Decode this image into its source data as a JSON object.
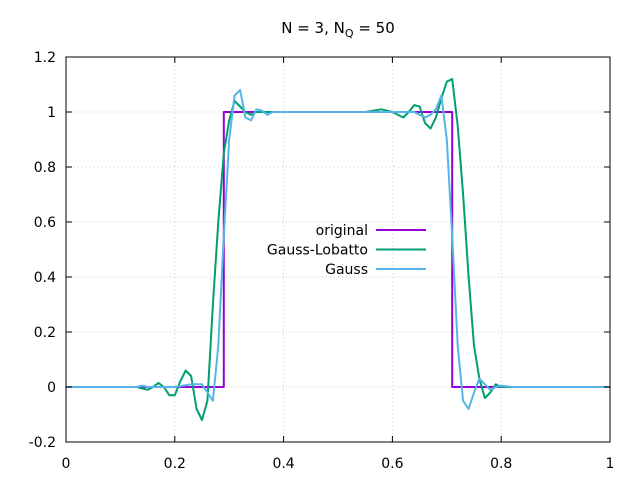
{
  "chart_data": {
    "type": "line",
    "title": "N = 3, N",
    "title_sub": "Q",
    "title_tail": " = 50",
    "xlim": [
      0,
      1
    ],
    "ylim": [
      -0.2,
      1.2
    ],
    "xticks": [
      0,
      0.2,
      0.4,
      0.6,
      0.8,
      1
    ],
    "xtick_labels": [
      "0",
      "0.2",
      "0.4",
      "0.6",
      "0.8",
      "1"
    ],
    "yticks": [
      -0.2,
      0,
      0.2,
      0.4,
      0.6,
      0.8,
      1,
      1.2
    ],
    "ytick_labels": [
      "-0.2",
      "0",
      "0.2",
      "0.4",
      "0.6",
      "0.8",
      "1",
      "1.2"
    ],
    "grid": true,
    "legend_position": "center",
    "series": [
      {
        "name": "original",
        "color": "#9400d3",
        "x": [
          0,
          0.29,
          0.29,
          0.71,
          0.71,
          1
        ],
        "y": [
          0,
          0,
          1,
          1,
          0,
          0
        ]
      },
      {
        "name": "Gauss-Lobatto",
        "color": "#009e73",
        "x": [
          0,
          0.1,
          0.13,
          0.15,
          0.16,
          0.17,
          0.18,
          0.19,
          0.2,
          0.21,
          0.22,
          0.23,
          0.24,
          0.25,
          0.26,
          0.27,
          0.28,
          0.29,
          0.3,
          0.31,
          0.32,
          0.33,
          0.34,
          0.35,
          0.37,
          0.4,
          0.5,
          0.55,
          0.58,
          0.6,
          0.62,
          0.63,
          0.64,
          0.65,
          0.66,
          0.67,
          0.68,
          0.69,
          0.7,
          0.71,
          0.72,
          0.73,
          0.74,
          0.75,
          0.76,
          0.77,
          0.78,
          0.79,
          0.8,
          0.82,
          1
        ],
        "y": [
          0,
          0,
          0,
          -0.01,
          0,
          0.015,
          0,
          -0.03,
          -0.03,
          0.02,
          0.06,
          0.04,
          -0.08,
          -0.12,
          -0.05,
          0.3,
          0.6,
          0.85,
          0.97,
          1.04,
          1.02,
          1.0,
          0.99,
          1.0,
          1.0,
          1.0,
          1.0,
          1.0,
          1.01,
          1.0,
          0.98,
          1.0,
          1.025,
          1.02,
          0.96,
          0.94,
          0.98,
          1.05,
          1.11,
          1.12,
          0.95,
          0.7,
          0.4,
          0.15,
          0.03,
          -0.04,
          -0.02,
          0.01,
          0,
          0,
          0
        ]
      },
      {
        "name": "Gauss",
        "color": "#56b4e9",
        "x": [
          0,
          0.13,
          0.14,
          0.15,
          0.17,
          0.2,
          0.23,
          0.25,
          0.26,
          0.27,
          0.28,
          0.29,
          0.3,
          0.31,
          0.32,
          0.33,
          0.34,
          0.35,
          0.36,
          0.37,
          0.38,
          0.4,
          0.5,
          0.6,
          0.62,
          0.64,
          0.65,
          0.66,
          0.67,
          0.68,
          0.69,
          0.7,
          0.71,
          0.72,
          0.73,
          0.74,
          0.75,
          0.76,
          0.77,
          0.78,
          0.79,
          0.8,
          0.82,
          1
        ],
        "y": [
          0,
          0,
          0.005,
          0,
          0,
          0,
          0.01,
          0.01,
          -0.02,
          -0.05,
          0.15,
          0.55,
          0.9,
          1.06,
          1.08,
          0.98,
          0.97,
          1.01,
          1.005,
          0.99,
          1.0,
          1.0,
          1.0,
          1.0,
          1.0,
          1.0,
          0.99,
          0.98,
          0.99,
          1.01,
          1.06,
          0.9,
          0.55,
          0.15,
          -0.05,
          -0.08,
          -0.02,
          0.03,
          0.01,
          -0.01,
          0.0,
          0.005,
          0,
          0
        ]
      }
    ]
  }
}
